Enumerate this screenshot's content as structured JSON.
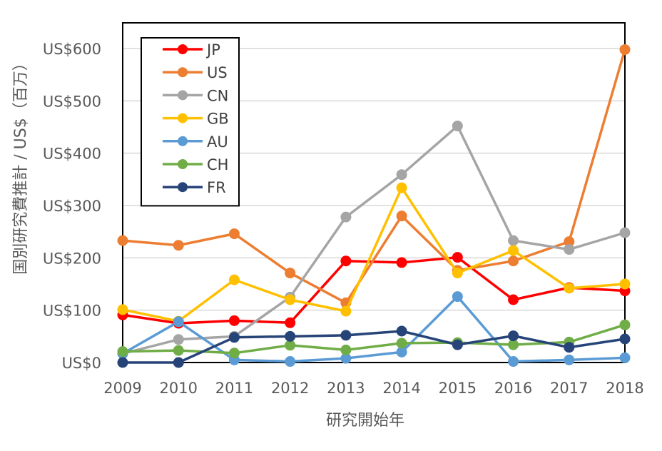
{
  "chart_data": {
    "type": "line",
    "title": "",
    "xlabel": "研究開始年",
    "ylabel": "国別研究費推計 / US$（百万）",
    "x": [
      2009,
      2010,
      2011,
      2012,
      2013,
      2014,
      2015,
      2016,
      2017,
      2018
    ],
    "x_tick_labels": [
      "2009",
      "2010",
      "2011",
      "2012",
      "2013",
      "2014",
      "2015",
      "2016",
      "2017",
      "2018"
    ],
    "ylim": [
      0,
      600
    ],
    "y_ticks": [
      0,
      100,
      200,
      300,
      400,
      500,
      600
    ],
    "y_tick_labels": [
      "US$0",
      "US$100",
      "US$200",
      "US$300",
      "US$400",
      "US$500",
      "US$600"
    ],
    "grid": true,
    "legend_position": "top-left",
    "series": [
      {
        "name": "JP",
        "color": "#ff0000",
        "values": [
          91,
          75,
          80,
          76,
          194,
          191,
          201,
          120,
          143,
          137
        ]
      },
      {
        "name": "US",
        "color": "#ed7d31",
        "values": [
          233,
          224,
          246,
          171,
          114,
          280,
          176,
          194,
          231,
          598
        ]
      },
      {
        "name": "CN",
        "color": "#a5a5a5",
        "values": [
          17,
          44,
          50,
          125,
          278,
          359,
          452,
          233,
          216,
          248
        ]
      },
      {
        "name": "GB",
        "color": "#ffc000",
        "values": [
          101,
          79,
          158,
          120,
          98,
          334,
          171,
          214,
          142,
          150
        ]
      },
      {
        "name": "AU",
        "color": "#5b9bd5",
        "values": [
          17,
          78,
          5,
          2,
          8,
          20,
          126,
          2,
          5,
          9
        ]
      },
      {
        "name": "CH",
        "color": "#70ad47",
        "values": [
          21,
          23,
          18,
          33,
          24,
          37,
          38,
          34,
          39,
          72
        ]
      },
      {
        "name": "FR",
        "color": "#264478",
        "values": [
          0,
          0,
          48,
          50,
          52,
          60,
          34,
          51,
          29,
          45
        ]
      }
    ]
  }
}
